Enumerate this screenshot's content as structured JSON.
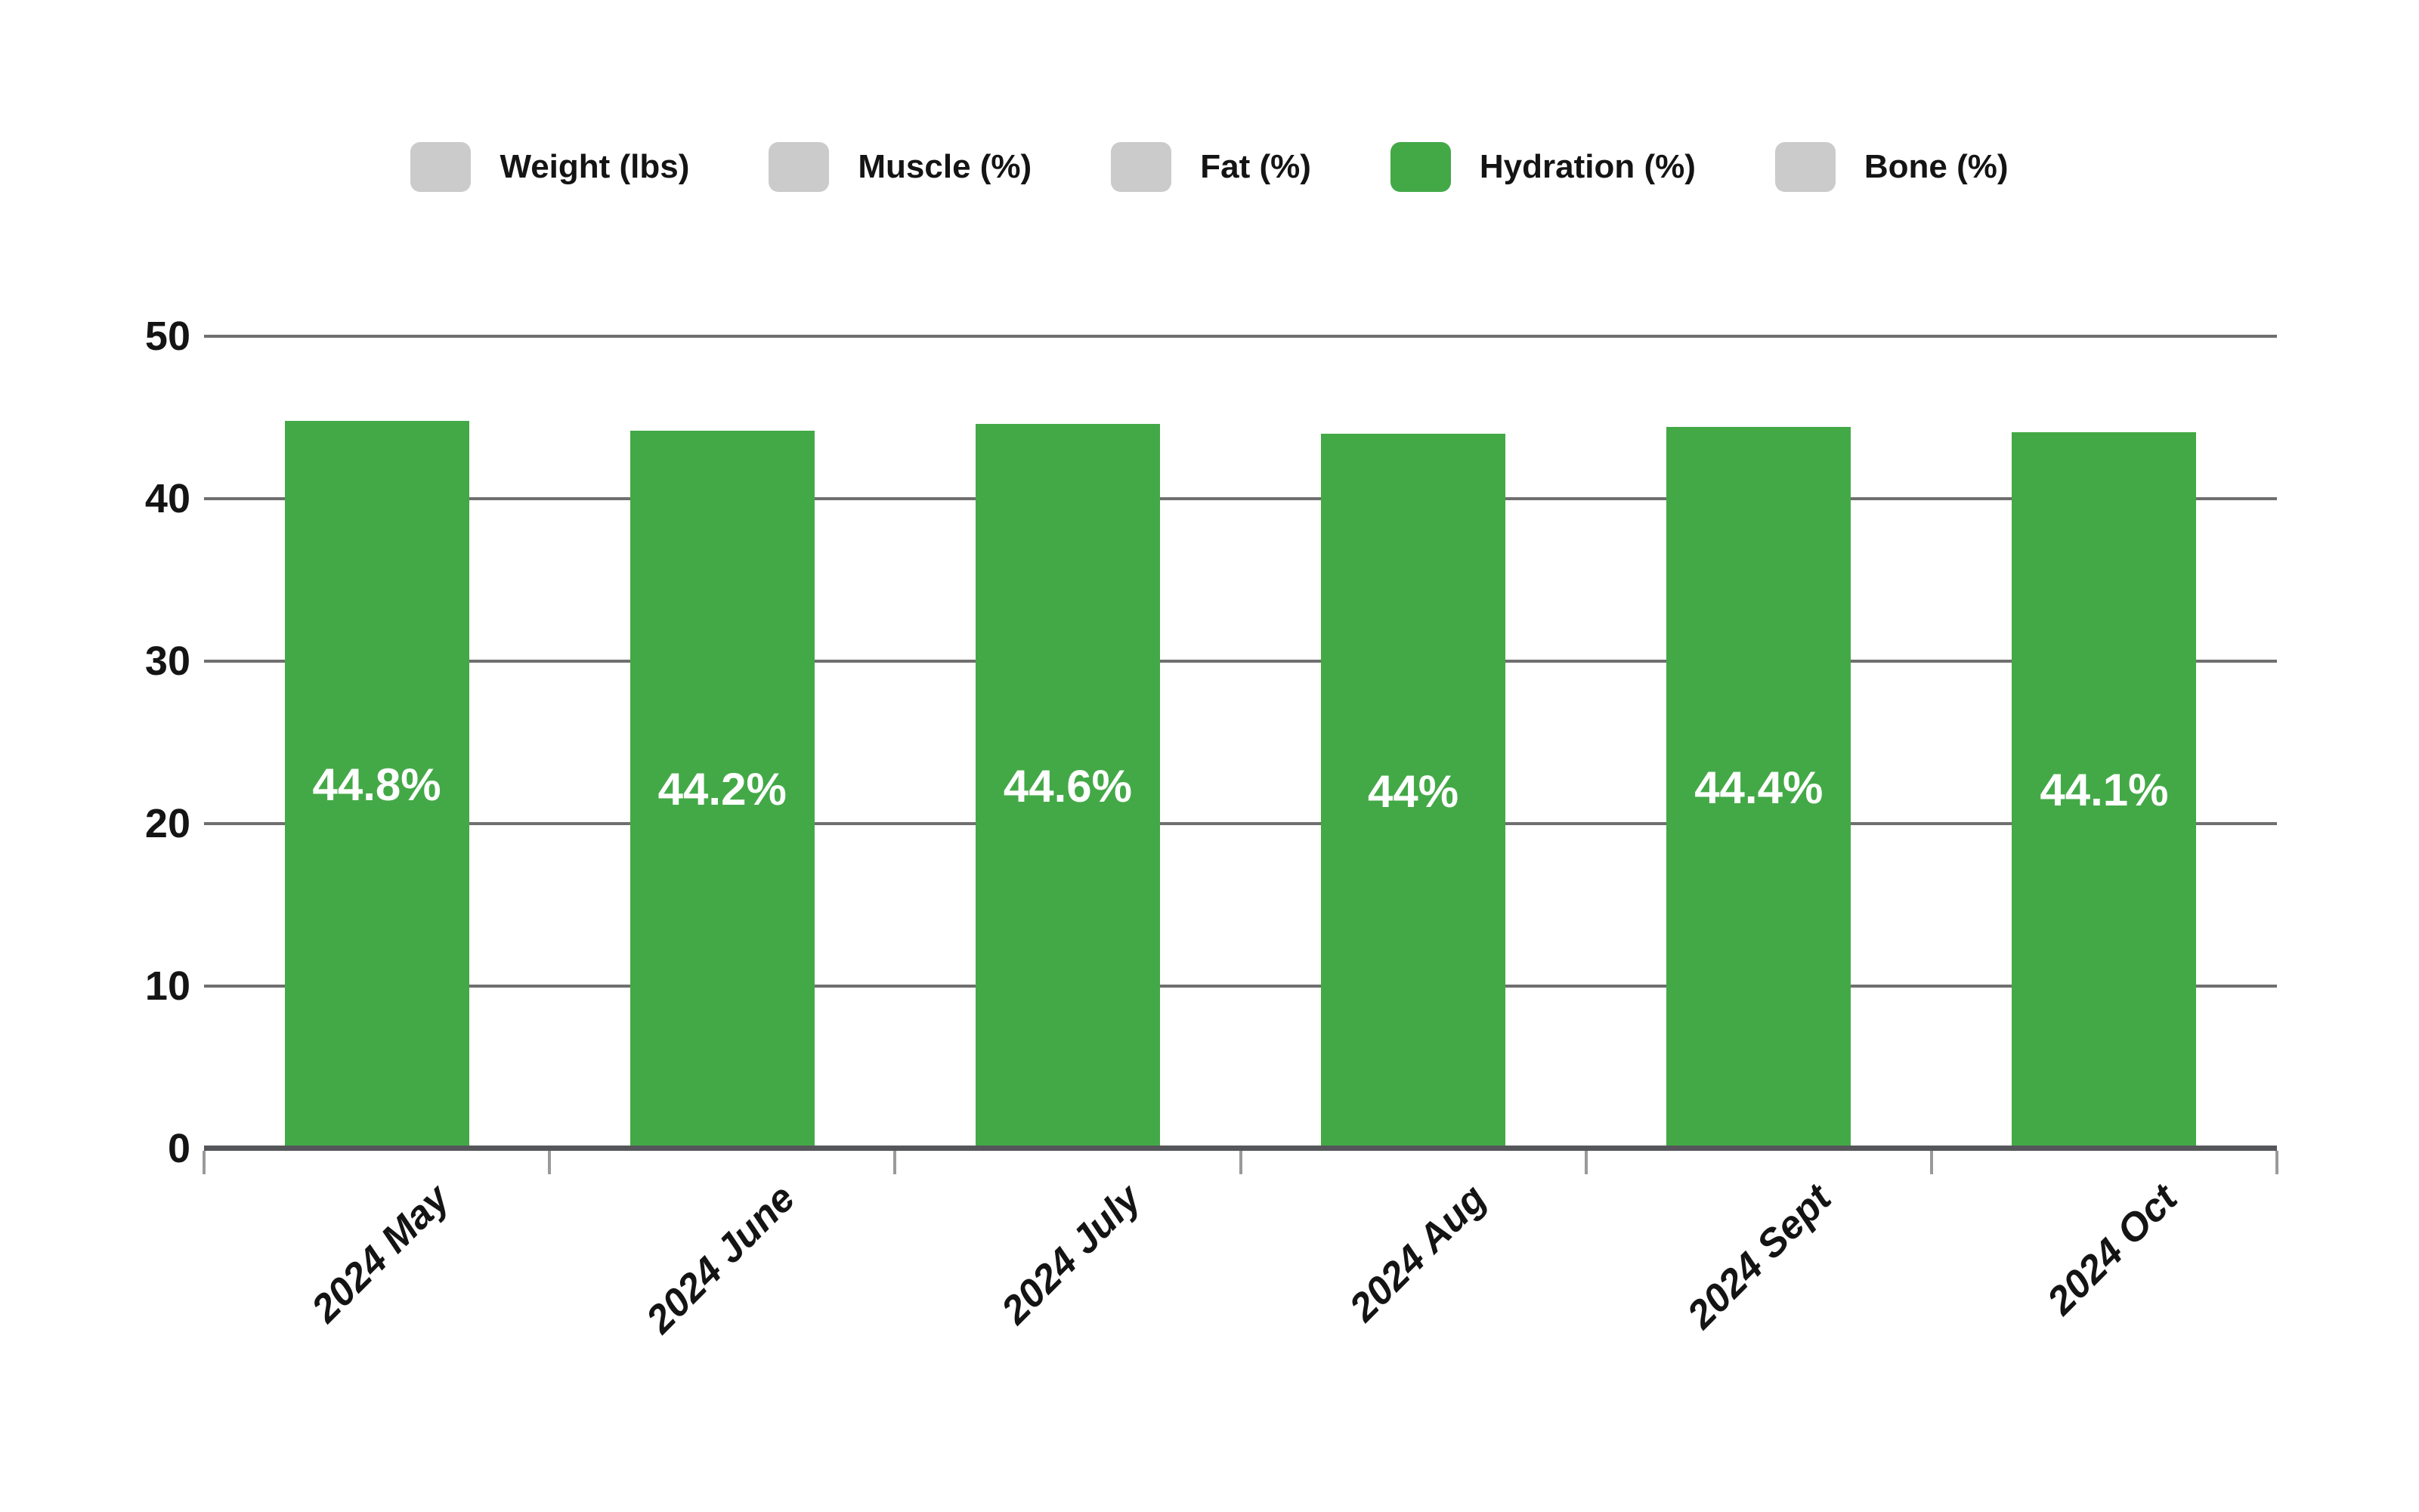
{
  "page": {
    "background": "#ffffff"
  },
  "legend": {
    "items": [
      {
        "label": "Weight (lbs)",
        "swatch_color": "#cbcbcb",
        "active": false
      },
      {
        "label": "Muscle (%)",
        "swatch_color": "#cbcbcb",
        "active": false
      },
      {
        "label": "Fat (%)",
        "swatch_color": "#cbcbcb",
        "active": false
      },
      {
        "label": "Hydration (%)",
        "swatch_color": "#43a947",
        "active": true
      },
      {
        "label": "Bone (%)",
        "swatch_color": "#cbcbcb",
        "active": false
      }
    ]
  },
  "chart_data": {
    "type": "bar",
    "title": "",
    "categories": [
      "2024 May",
      "2024 June",
      "2024 July",
      "2024 Aug",
      "2024 Sept",
      "2024 Oct"
    ],
    "series": [
      {
        "name": "Hydration (%)",
        "color": "#43a947",
        "values": [
          44.8,
          44.2,
          44.6,
          44,
          44.4,
          44.1
        ],
        "labels": [
          "44.8%",
          "44.2%",
          "44.6%",
          "44%",
          "44.4%",
          "44.1%"
        ]
      }
    ],
    "hidden_series": [
      "Weight (lbs)",
      "Muscle (%)",
      "Fat (%)",
      "Bone (%)"
    ],
    "xlabel": "",
    "ylabel": "",
    "ylim": [
      0,
      50
    ],
    "yticks": [
      0,
      10,
      20,
      30,
      40,
      50
    ],
    "grid": true,
    "legend_position": "top",
    "bar_label_color": "#ffffff",
    "gridline_color": "#6f6f6f",
    "axis_color": "#55565a",
    "tick_color": "#9a9a9a"
  }
}
